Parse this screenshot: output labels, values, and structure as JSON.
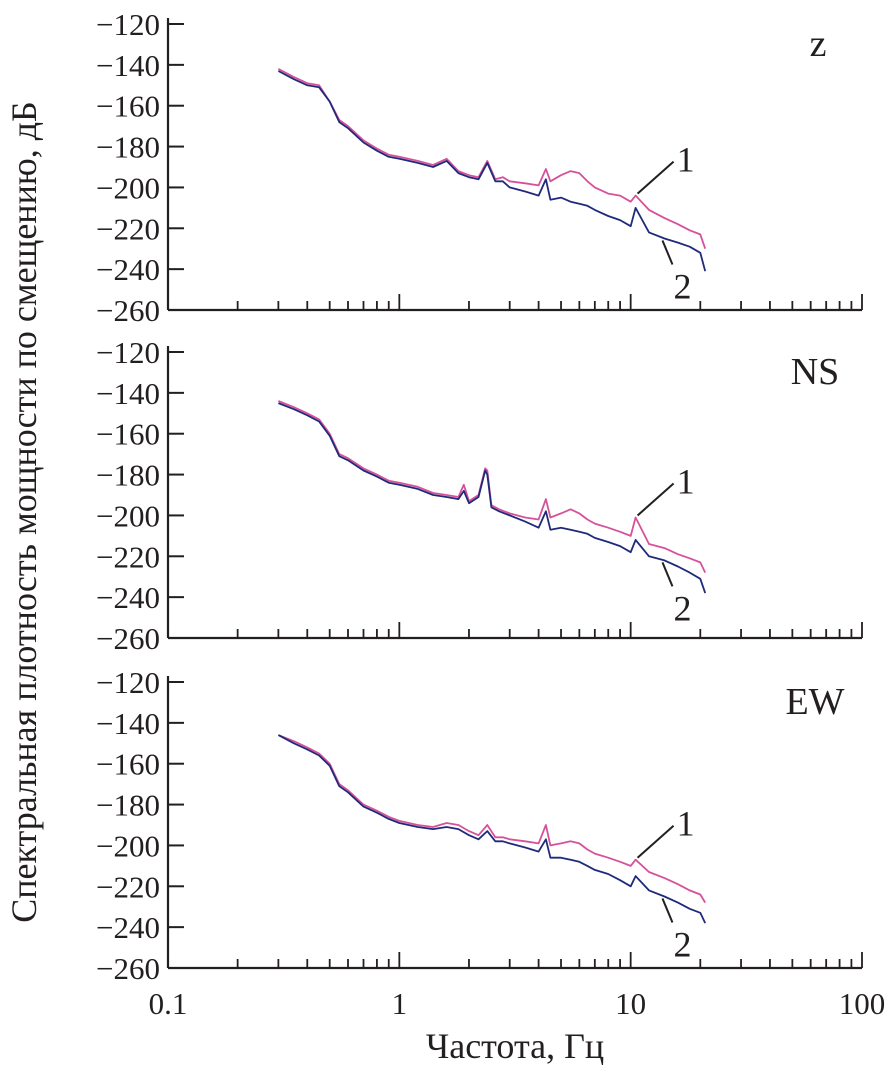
{
  "figure": {
    "ylabel": "Спектральная плотность мощности по смещению, дБ",
    "xlabel": "Частота, Гц",
    "x_tick_labels": [
      "0.1",
      "1",
      "10",
      "100"
    ],
    "y_tick_labels": [
      "−120",
      "−140",
      "−160",
      "−180",
      "−200",
      "−220",
      "−240",
      "−260"
    ],
    "colors": {
      "series_1": "#d6519a",
      "series_2": "#1f2a7a",
      "axes": "#231f20"
    }
  },
  "chart_data": [
    {
      "type": "line",
      "panel_label": "z",
      "xscale": "log",
      "xlim": [
        0.1,
        100
      ],
      "ylim": [
        -260,
        -120
      ],
      "curve_labels": [
        "1",
        "2"
      ],
      "series": [
        {
          "name": "1",
          "x": [
            0.3,
            0.35,
            0.4,
            0.45,
            0.5,
            0.55,
            0.6,
            0.7,
            0.8,
            0.9,
            1.0,
            1.2,
            1.4,
            1.6,
            1.8,
            2.0,
            2.2,
            2.4,
            2.6,
            2.8,
            3.0,
            3.5,
            4.0,
            4.3,
            4.5,
            5.0,
            5.5,
            6.0,
            6.5,
            7.0,
            8.0,
            9.0,
            10.0,
            10.5,
            12.0,
            14.0,
            16.0,
            18.0,
            20.0,
            21.0
          ],
          "y": [
            -142,
            -146,
            -149,
            -150,
            -158,
            -167,
            -170,
            -177,
            -181,
            -184,
            -185,
            -187,
            -189,
            -186,
            -192,
            -194,
            -195,
            -187,
            -196,
            -195,
            -197,
            -198,
            -199,
            -191,
            -197,
            -194,
            -192,
            -193,
            -197,
            -200,
            -203,
            -204,
            -207,
            -204,
            -211,
            -215,
            -218,
            -221,
            -223,
            -230
          ]
        },
        {
          "name": "2",
          "x": [
            0.3,
            0.35,
            0.4,
            0.45,
            0.5,
            0.55,
            0.6,
            0.7,
            0.8,
            0.9,
            1.0,
            1.2,
            1.4,
            1.6,
            1.8,
            2.0,
            2.2,
            2.4,
            2.6,
            2.8,
            3.0,
            3.5,
            4.0,
            4.3,
            4.5,
            5.0,
            5.5,
            6.0,
            6.5,
            7.0,
            8.0,
            9.0,
            10.0,
            10.5,
            12.0,
            14.0,
            16.0,
            18.0,
            20.0,
            21.0
          ],
          "y": [
            -143,
            -147,
            -150,
            -151,
            -158,
            -168,
            -171,
            -178,
            -182,
            -185,
            -186,
            -188,
            -190,
            -187,
            -193,
            -195,
            -196,
            -188,
            -197,
            -197,
            -200,
            -202,
            -204,
            -196,
            -206,
            -205,
            -207,
            -208,
            -209,
            -211,
            -214,
            -216,
            -219,
            -210,
            -222,
            -225,
            -227,
            -229,
            -232,
            -241
          ]
        }
      ]
    },
    {
      "type": "line",
      "panel_label": "NS",
      "xscale": "log",
      "xlim": [
        0.1,
        100
      ],
      "ylim": [
        -260,
        -120
      ],
      "curve_labels": [
        "1",
        "2"
      ],
      "series": [
        {
          "name": "1",
          "x": [
            0.3,
            0.35,
            0.4,
            0.45,
            0.5,
            0.55,
            0.6,
            0.7,
            0.8,
            0.9,
            1.0,
            1.2,
            1.4,
            1.6,
            1.8,
            1.9,
            2.0,
            2.2,
            2.35,
            2.4,
            2.5,
            2.7,
            3.0,
            3.5,
            4.0,
            4.3,
            4.5,
            5.0,
            5.5,
            6.0,
            6.5,
            7.0,
            8.0,
            9.0,
            10.0,
            10.5,
            12.0,
            14.0,
            16.0,
            18.0,
            20.0,
            21.0
          ],
          "y": [
            -144,
            -147,
            -150,
            -153,
            -160,
            -170,
            -172,
            -177,
            -180,
            -183,
            -184,
            -186,
            -189,
            -190,
            -191,
            -185,
            -193,
            -190,
            -177,
            -178,
            -195,
            -197,
            -199,
            -201,
            -202,
            -192,
            -201,
            -199,
            -197,
            -199,
            -202,
            -204,
            -206,
            -208,
            -210,
            -201,
            -214,
            -216,
            -219,
            -221,
            -223,
            -228
          ]
        },
        {
          "name": "2",
          "x": [
            0.3,
            0.35,
            0.4,
            0.45,
            0.5,
            0.55,
            0.6,
            0.7,
            0.8,
            0.9,
            1.0,
            1.2,
            1.4,
            1.6,
            1.8,
            1.9,
            2.0,
            2.2,
            2.35,
            2.4,
            2.5,
            2.7,
            3.0,
            3.5,
            4.0,
            4.3,
            4.5,
            5.0,
            5.5,
            6.0,
            6.5,
            7.0,
            8.0,
            9.0,
            10.0,
            10.5,
            12.0,
            14.0,
            16.0,
            18.0,
            20.0,
            21.0
          ],
          "y": [
            -145,
            -148,
            -151,
            -154,
            -161,
            -171,
            -173,
            -178,
            -181,
            -184,
            -185,
            -187,
            -190,
            -191,
            -192,
            -188,
            -194,
            -191,
            -178,
            -180,
            -196,
            -198,
            -200,
            -203,
            -206,
            -198,
            -207,
            -206,
            -207,
            -208,
            -209,
            -211,
            -213,
            -215,
            -218,
            -212,
            -220,
            -222,
            -225,
            -228,
            -231,
            -238
          ]
        }
      ]
    },
    {
      "type": "line",
      "panel_label": "EW",
      "xscale": "log",
      "xlim": [
        0.1,
        100
      ],
      "ylim": [
        -260,
        -120
      ],
      "curve_labels": [
        "1",
        "2"
      ],
      "series": [
        {
          "name": "1",
          "x": [
            0.3,
            0.35,
            0.4,
            0.45,
            0.5,
            0.55,
            0.6,
            0.7,
            0.8,
            0.9,
            1.0,
            1.2,
            1.4,
            1.6,
            1.8,
            2.0,
            2.2,
            2.4,
            2.6,
            2.8,
            3.0,
            3.5,
            4.0,
            4.3,
            4.5,
            5.0,
            5.5,
            6.0,
            6.5,
            7.0,
            8.0,
            9.0,
            10.0,
            10.5,
            12.0,
            14.0,
            16.0,
            18.0,
            20.0,
            21.0
          ],
          "y": [
            -146,
            -149,
            -152,
            -155,
            -160,
            -170,
            -173,
            -180,
            -183,
            -186,
            -188,
            -190,
            -191,
            -189,
            -190,
            -193,
            -195,
            -190,
            -196,
            -196,
            -197,
            -198,
            -199,
            -190,
            -200,
            -199,
            -198,
            -199,
            -202,
            -204,
            -206,
            -208,
            -210,
            -207,
            -213,
            -216,
            -219,
            -222,
            -224,
            -228
          ]
        },
        {
          "name": "2",
          "x": [
            0.3,
            0.35,
            0.4,
            0.45,
            0.5,
            0.55,
            0.6,
            0.7,
            0.8,
            0.9,
            1.0,
            1.2,
            1.4,
            1.6,
            1.8,
            2.0,
            2.2,
            2.4,
            2.6,
            2.8,
            3.0,
            3.5,
            4.0,
            4.3,
            4.5,
            5.0,
            5.5,
            6.0,
            6.5,
            7.0,
            8.0,
            9.0,
            10.0,
            10.5,
            12.0,
            14.0,
            16.0,
            18.0,
            20.0,
            21.0
          ],
          "y": [
            -146,
            -150,
            -153,
            -156,
            -161,
            -171,
            -174,
            -181,
            -184,
            -187,
            -189,
            -191,
            -192,
            -191,
            -192,
            -195,
            -197,
            -193,
            -198,
            -198,
            -199,
            -201,
            -203,
            -197,
            -206,
            -206,
            -207,
            -208,
            -210,
            -212,
            -214,
            -217,
            -220,
            -215,
            -222,
            -225,
            -228,
            -231,
            -233,
            -238
          ]
        }
      ]
    }
  ]
}
